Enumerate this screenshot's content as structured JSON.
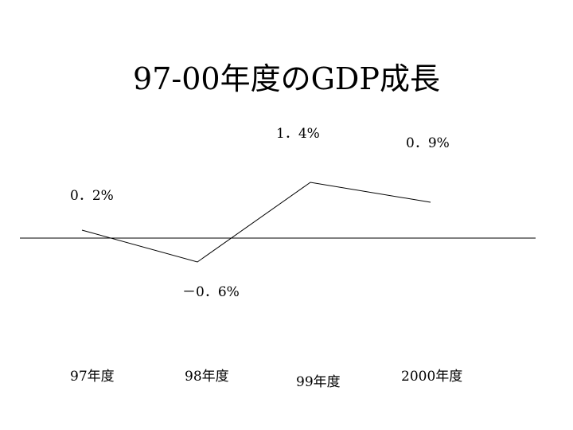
{
  "slide": {
    "title": "97-00年度のGDP成長"
  },
  "chart_data": {
    "type": "line",
    "title": "97-00年度のGDP成長",
    "xlabel": "",
    "ylabel": "",
    "categories": [
      "97年度",
      "98年度",
      "99年度",
      "2000年度"
    ],
    "series": [
      {
        "values": [
          0.2,
          -0.6,
          1.4,
          0.9
        ]
      }
    ],
    "data_labels": [
      "0．2%",
      "－0．6%",
      "1．4%",
      "0．9%"
    ],
    "ylim": [
      -0.9,
      1.7
    ],
    "grid": false,
    "legend": "none",
    "baseline": 0,
    "colors": {
      "line": "#000000",
      "axis": "#000000"
    }
  }
}
